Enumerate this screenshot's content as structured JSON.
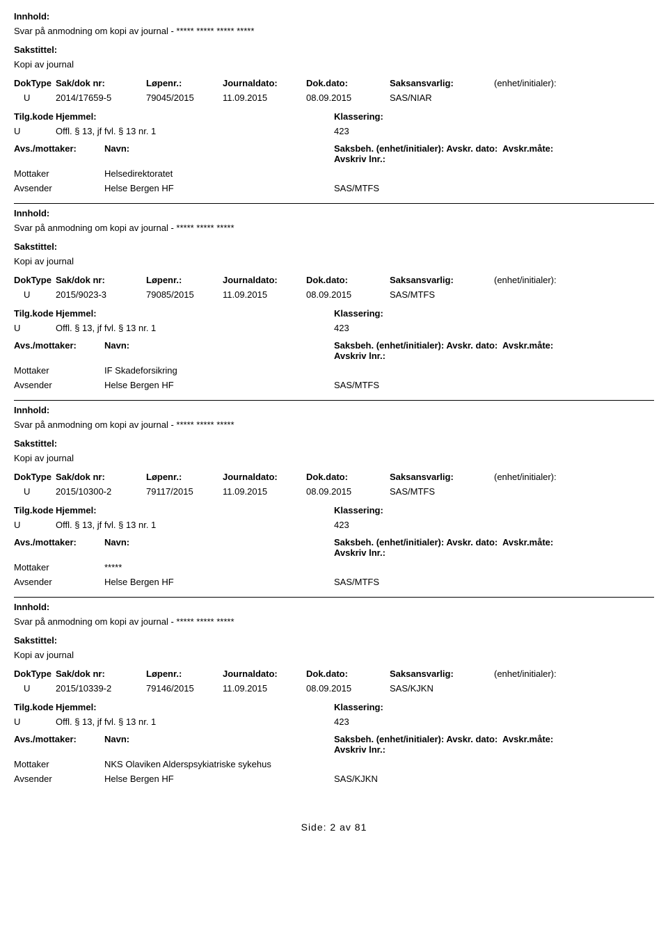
{
  "labels": {
    "innhold": "Innhold:",
    "sakstittel": "Sakstittel:",
    "doktype": "DokType",
    "sakdok": "Sak/dok nr:",
    "lopenr": "Løpenr.:",
    "journaldato": "Journaldato:",
    "dokdato": "Dok.dato:",
    "saksansvarlig": "Saksansvarlig:",
    "enhet": "(enhet/initialer):",
    "tilgkode": "Tilg.kode",
    "hjemmel": "Hjemmel:",
    "klassering": "Klassering:",
    "avsmottaker": "Avs./mottaker:",
    "navn": "Navn:",
    "saksbeh": "Saksbeh.",
    "saksbeh_enhet": "(enhet/initialer):",
    "avskr_dato": "Avskr. dato:",
    "avskr_mate": "Avskr.måte:",
    "avskriv_lnr": "Avskriv lnr.:"
  },
  "records": [
    {
      "innhold": "Svar på anmodning om kopi av journal - ***** ***** ***** *****",
      "sakstittel": "Kopi av journal",
      "doktype": "U",
      "sakdok": "2014/17659-5",
      "lopenr": "79045/2015",
      "journaldato": "11.09.2015",
      "dokdato": "08.09.2015",
      "saksansvarlig": "SAS/NIAR",
      "tilgkode": "U",
      "hjemmel": "Offl. § 13, jf fvl. § 13 nr. 1",
      "klassering": "423",
      "parties": [
        {
          "role": "Mottaker",
          "navn": "Helsedirektoratet",
          "saksbeh": ""
        },
        {
          "role": "Avsender",
          "navn": "Helse Bergen HF",
          "saksbeh": "SAS/MTFS"
        }
      ]
    },
    {
      "innhold": "Svar på anmodning om kopi av journal - ***** ***** *****",
      "sakstittel": "Kopi av journal",
      "doktype": "U",
      "sakdok": "2015/9023-3",
      "lopenr": "79085/2015",
      "journaldato": "11.09.2015",
      "dokdato": "08.09.2015",
      "saksansvarlig": "SAS/MTFS",
      "tilgkode": "U",
      "hjemmel": "Offl. § 13, jf fvl. § 13 nr. 1",
      "klassering": "423",
      "parties": [
        {
          "role": "Mottaker",
          "navn": "IF Skadeforsikring",
          "saksbeh": ""
        },
        {
          "role": "Avsender",
          "navn": "Helse Bergen HF",
          "saksbeh": "SAS/MTFS"
        }
      ]
    },
    {
      "innhold": "Svar på anmodning om kopi av journal - ***** ***** *****",
      "sakstittel": "Kopi av journal",
      "doktype": "U",
      "sakdok": "2015/10300-2",
      "lopenr": "79117/2015",
      "journaldato": "11.09.2015",
      "dokdato": "08.09.2015",
      "saksansvarlig": "SAS/MTFS",
      "tilgkode": "U",
      "hjemmel": "Offl. § 13, jf fvl. § 13 nr. 1",
      "klassering": "423",
      "parties": [
        {
          "role": "Mottaker",
          "navn": "*****",
          "saksbeh": ""
        },
        {
          "role": "Avsender",
          "navn": "Helse Bergen HF",
          "saksbeh": "SAS/MTFS"
        }
      ]
    },
    {
      "innhold": "Svar på anmodning om kopi av journal - ***** ***** *****",
      "sakstittel": "Kopi av journal",
      "doktype": "U",
      "sakdok": "2015/10339-2",
      "lopenr": "79146/2015",
      "journaldato": "11.09.2015",
      "dokdato": "08.09.2015",
      "saksansvarlig": "SAS/KJKN",
      "tilgkode": "U",
      "hjemmel": "Offl. § 13, jf fvl. § 13 nr. 1",
      "klassering": "423",
      "parties": [
        {
          "role": "Mottaker",
          "navn": "NKS Olaviken Alderspsykiatriske sykehus",
          "saksbeh": ""
        },
        {
          "role": "Avsender",
          "navn": "Helse Bergen HF",
          "saksbeh": "SAS/KJKN"
        }
      ]
    }
  ],
  "footer": {
    "prefix": "Side:",
    "page": "2",
    "of": "av",
    "total": "81"
  }
}
